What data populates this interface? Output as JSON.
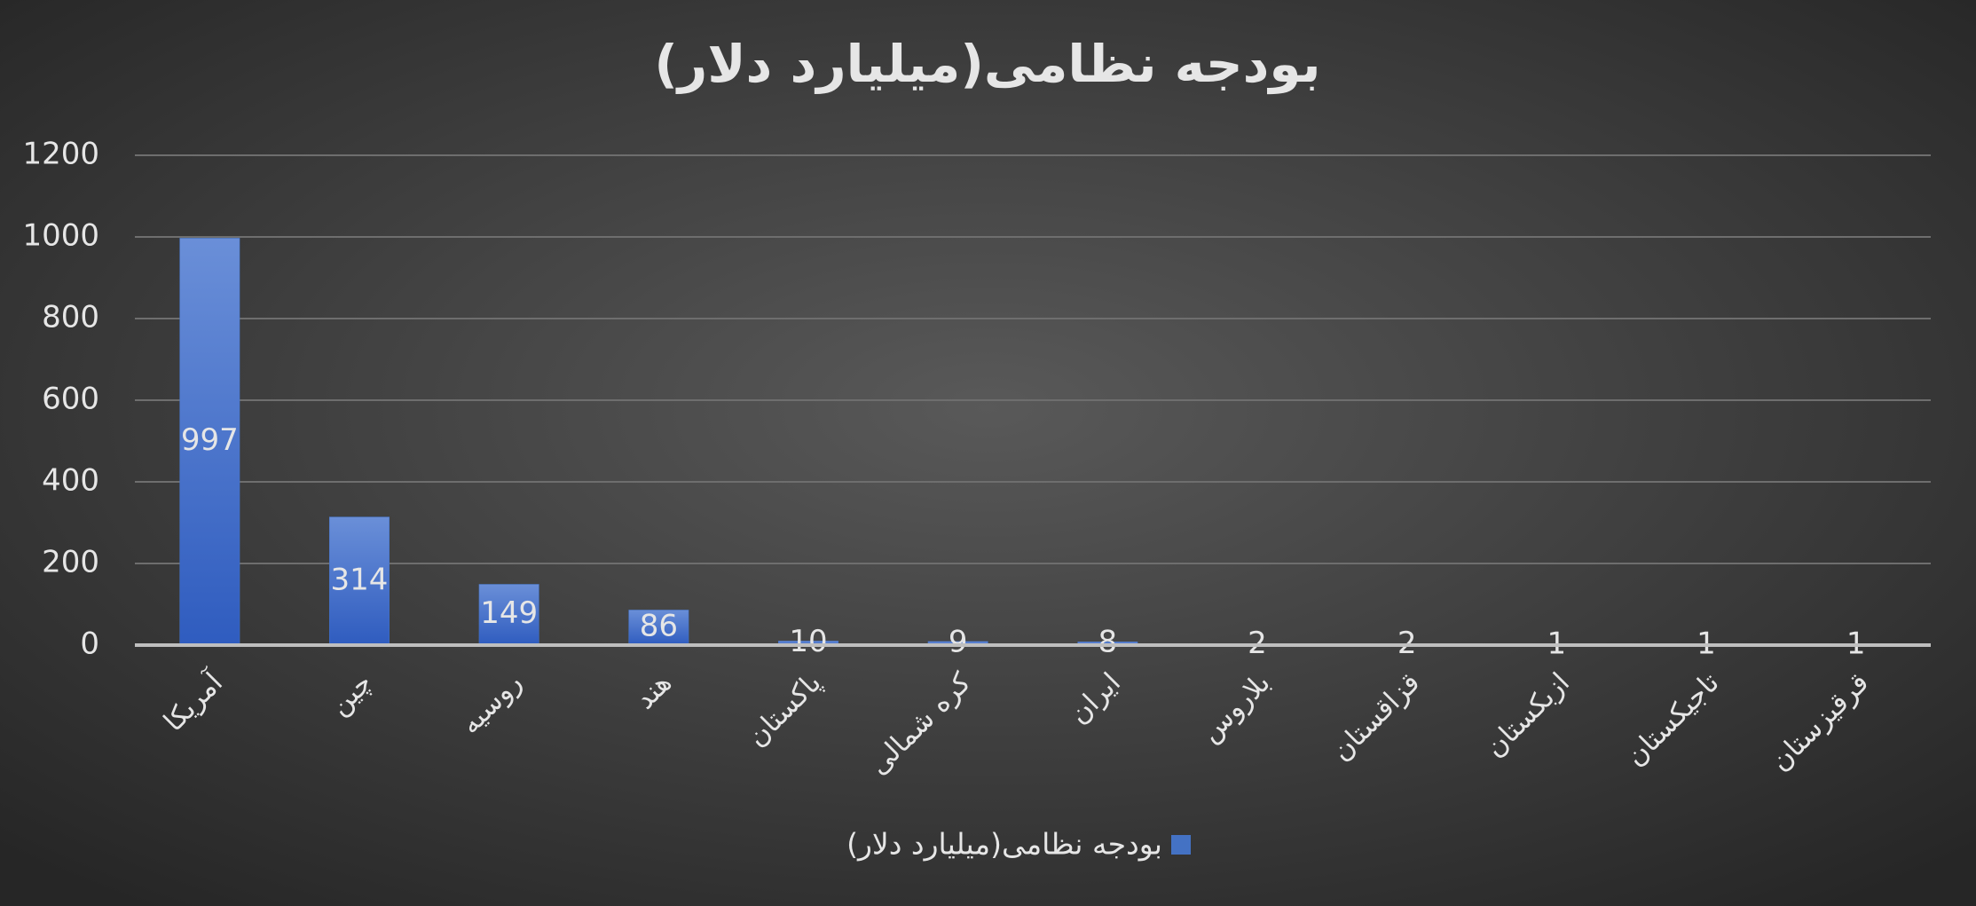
{
  "chart_data": {
    "type": "bar",
    "title": "بودجه نظامی(میلیارد دلار)",
    "categories": [
      "آمریکا",
      "چین",
      "روسیه",
      "هند",
      "پاکستان",
      "کره شمالی",
      "ایران",
      "بلاروس",
      "قزاقستان",
      "ازبکستان",
      "تاجیکستان",
      "قرقیزستان"
    ],
    "series": [
      {
        "name": "بودجه نظامی(میلیارد دلار)",
        "color": "#4472c4",
        "values": [
          997,
          314,
          149,
          86,
          10,
          9,
          8,
          2,
          2,
          1,
          1,
          1
        ]
      }
    ],
    "ylim": [
      0,
      1200
    ],
    "yticks": [
      0,
      200,
      400,
      600,
      800,
      1000,
      1200
    ],
    "grid": true,
    "legend": "bottom"
  }
}
